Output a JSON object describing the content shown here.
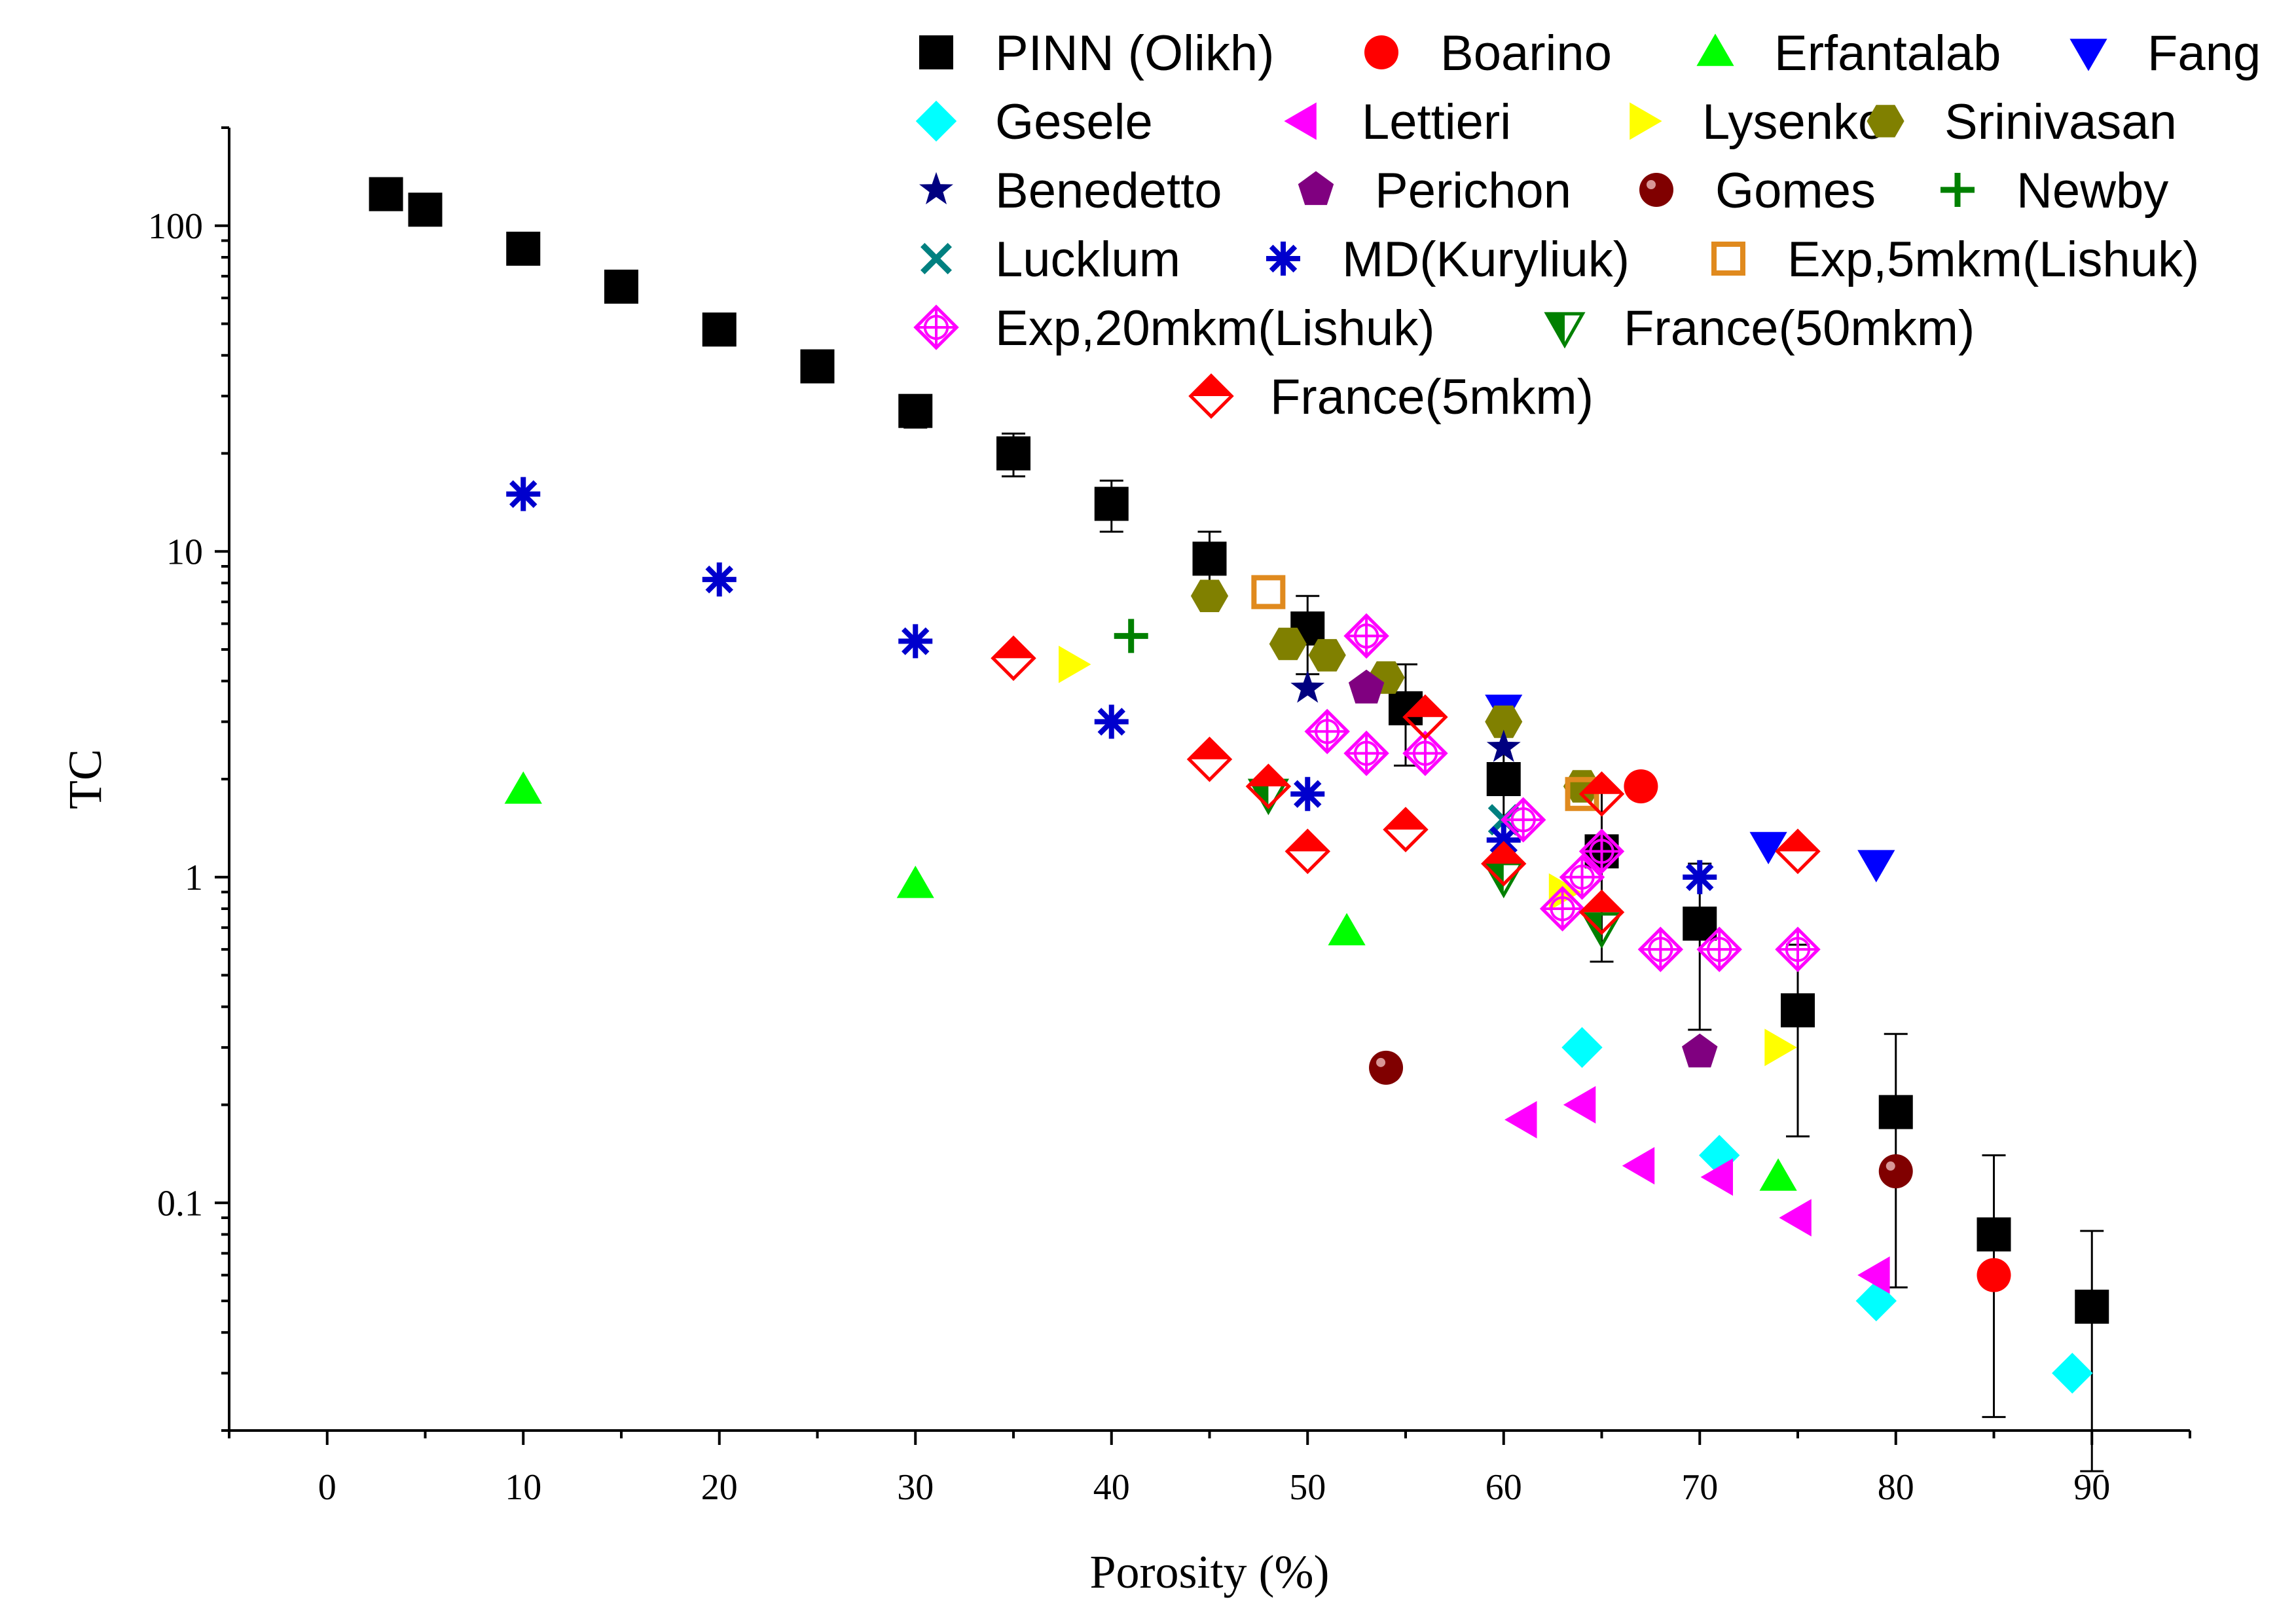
{
  "chart_data": {
    "type": "scatter",
    "xlabel": "Porosity (%)",
    "ylabel": "TC",
    "xlim": [
      -5,
      95
    ],
    "ylim": [
      0.02,
      200
    ],
    "yscale": "log",
    "x_ticks": [
      0,
      10,
      20,
      30,
      40,
      50,
      60,
      70,
      80,
      90
    ],
    "y_ticks": [
      0.1,
      1,
      10,
      100
    ],
    "y_tick_labels": [
      "0.1",
      "1",
      "10",
      "100"
    ],
    "legend_position": "top-right",
    "series": [
      {
        "name": "PINN (Olikh)",
        "marker": "square",
        "color": "#000000",
        "x": [
          3,
          5,
          10,
          15,
          20,
          25,
          30,
          35,
          40,
          45,
          50,
          55,
          60,
          65,
          70,
          75,
          80,
          85,
          90
        ],
        "y": [
          125,
          112,
          85,
          65,
          48,
          37,
          27,
          20,
          14,
          9.5,
          5.8,
          3.3,
          2.0,
          1.2,
          0.72,
          0.39,
          0.19,
          0.08,
          0.048
        ],
        "err_low": [
          125,
          110,
          82,
          62,
          46,
          34,
          24,
          17,
          11.5,
          7.5,
          4.2,
          2.2,
          1.1,
          0.55,
          0.34,
          0.16,
          0.055,
          0.022,
          0.015
        ],
        "err_high": [
          125,
          115,
          88,
          68,
          51,
          40,
          30,
          23,
          16.5,
          11.5,
          7.3,
          4.5,
          3.0,
          1.9,
          1.1,
          0.62,
          0.33,
          0.14,
          0.082
        ]
      },
      {
        "name": "Boarino",
        "marker": "circle",
        "color": "#ff0000",
        "x": [
          67,
          85
        ],
        "y": [
          1.9,
          0.06
        ]
      },
      {
        "name": "Erfantalab",
        "marker": "triangle-up",
        "color": "#00ff00",
        "x": [
          10,
          30,
          52,
          74
        ],
        "y": [
          1.85,
          0.95,
          0.68,
          0.12
        ]
      },
      {
        "name": "Fang",
        "marker": "triangle-down",
        "color": "#0000ff",
        "x": [
          60,
          73.5,
          79
        ],
        "y": [
          3.3,
          1.25,
          1.1
        ]
      },
      {
        "name": "Gesele",
        "marker": "diamond",
        "color": "#00ffff",
        "x": [
          64,
          71,
          79,
          89
        ],
        "y": [
          0.3,
          0.14,
          0.05,
          0.03
        ]
      },
      {
        "name": "Lettieri",
        "marker": "triangle-left",
        "color": "#ff00ff",
        "x": [
          61,
          64,
          67,
          71,
          75,
          79
        ],
        "y": [
          0.18,
          0.2,
          0.13,
          0.12,
          0.09,
          0.06
        ]
      },
      {
        "name": "Lysenko",
        "marker": "triangle-right",
        "color": "#ffff00",
        "x": [
          38,
          63,
          74
        ],
        "y": [
          4.5,
          0.9,
          0.3
        ]
      },
      {
        "name": "Srinivasan",
        "marker": "hexagon",
        "color": "#808000",
        "x": [
          45,
          49,
          51,
          54,
          60,
          64
        ],
        "y": [
          7.3,
          5.2,
          4.8,
          4.1,
          3.0,
          1.9
        ]
      },
      {
        "name": "Benedetto",
        "marker": "star",
        "color": "#000080",
        "x": [
          50,
          60
        ],
        "y": [
          3.8,
          2.5
        ]
      },
      {
        "name": "Perichon",
        "marker": "pentagon",
        "color": "#800080",
        "x": [
          53,
          70
        ],
        "y": [
          3.8,
          0.29
        ]
      },
      {
        "name": "Gomes",
        "marker": "sphere",
        "color": "#800000",
        "x": [
          54,
          80
        ],
        "y": [
          0.26,
          0.125
        ]
      },
      {
        "name": "Newby",
        "marker": "plus",
        "color": "#008000",
        "x": [
          41
        ],
        "y": [
          5.5
        ]
      },
      {
        "name": "Lucklum",
        "marker": "x",
        "color": "#008080",
        "x": [
          60
        ],
        "y": [
          1.5
        ]
      },
      {
        "name": "MD(Kuryliuk)",
        "marker": "asterisk",
        "color": "#0000cd",
        "x": [
          10,
          20,
          30,
          40,
          50,
          60,
          70
        ],
        "y": [
          15,
          8.2,
          5.3,
          3.0,
          1.8,
          1.3,
          1.0
        ]
      },
      {
        "name": "Exp,5mkm(Lishuk)",
        "marker": "square-open",
        "color": "#e08a1e",
        "x": [
          48,
          64
        ],
        "y": [
          7.5,
          1.8
        ]
      },
      {
        "name": "Exp,20mkm(Lishuk)",
        "marker": "diamond-cross-open",
        "color": "#ff00ff",
        "x": [
          51,
          53,
          53,
          56,
          61,
          63,
          64,
          65,
          68,
          71,
          75
        ],
        "y": [
          2.8,
          5.5,
          2.4,
          2.4,
          1.5,
          0.8,
          1.0,
          1.2,
          0.6,
          0.6,
          0.6
        ]
      },
      {
        "name": "France(50mkm)",
        "marker": "triangle-down-half",
        "color": "#008000",
        "x": [
          48,
          60,
          65
        ],
        "y": [
          1.8,
          1.0,
          0.7
        ]
      },
      {
        "name": "France(5mkm)",
        "marker": "diamond-half",
        "color": "#ff0000",
        "x": [
          35,
          45,
          48,
          50,
          55,
          56,
          60,
          65,
          65,
          75
        ],
        "y": [
          4.7,
          2.3,
          1.9,
          1.2,
          1.4,
          3.1,
          1.1,
          1.8,
          0.78,
          1.2
        ]
      }
    ]
  }
}
